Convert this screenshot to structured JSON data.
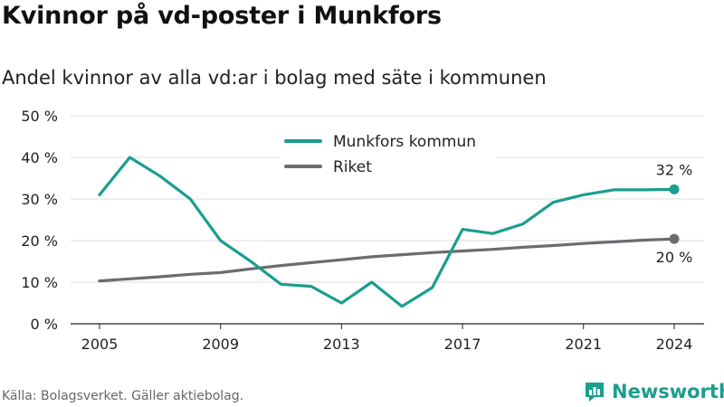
{
  "title": "Kvinnor på vd-poster i Munkfors",
  "subtitle": "Andel kvinnor av alla vd:ar i bolag med säte i kommunen",
  "source": "Källa: Bolagsverket. Gäller aktiebolag.",
  "brand": "Newsworthy",
  "colors": {
    "munkfors": "#1a9e8f",
    "riket": "#6b6b70",
    "brand": "#1a9e8f"
  },
  "chart_data": {
    "type": "line",
    "x": [
      2005,
      2006,
      2007,
      2008,
      2009,
      2010,
      2011,
      2012,
      2013,
      2014,
      2015,
      2016,
      2017,
      2018,
      2019,
      2020,
      2021,
      2022,
      2023,
      2024
    ],
    "x_ticks": [
      "2005",
      "2009",
      "2013",
      "2017",
      "2021",
      "2024"
    ],
    "y_ticks": [
      "0 %",
      "10 %",
      "20 %",
      "30 %",
      "40 %",
      "50 %"
    ],
    "ylim": [
      0,
      50
    ],
    "grid": true,
    "legend_position": "top-center",
    "series": [
      {
        "name": "Munkfors kommun",
        "values": [
          31,
          40,
          35.5,
          30,
          20,
          15,
          9.5,
          9,
          5,
          10,
          4.2,
          8.7,
          22.7,
          21.7,
          24,
          29.2,
          31,
          32.2,
          32.2,
          32.3
        ],
        "end_label": "32 %"
      },
      {
        "name": "Riket",
        "values": [
          10.3,
          10.8,
          11.3,
          11.9,
          12.3,
          13.2,
          14,
          14.7,
          15.4,
          16.1,
          16.6,
          17.1,
          17.5,
          17.9,
          18.4,
          18.8,
          19.3,
          19.7,
          20.1,
          20.4
        ],
        "end_label": "20 %"
      }
    ]
  }
}
